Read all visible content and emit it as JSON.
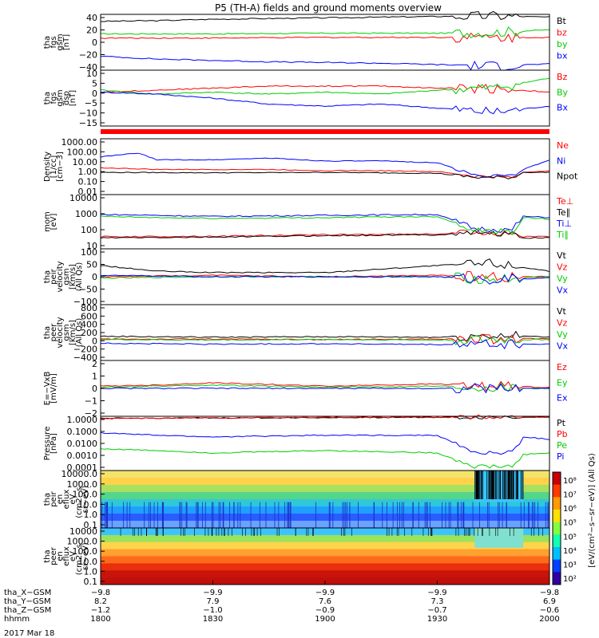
{
  "title": "P5 (TH-A) fields and ground moments overview",
  "date_label": "2017 Mar 18",
  "colors": {
    "black": "#000000",
    "red": "#ff0000",
    "green": "#00cc00",
    "blue": "#0000ff",
    "bar_red": "#ff0000"
  },
  "chart_data": [
    {
      "type": "line",
      "id": "p1",
      "ylabel": [
        "tha",
        "fgs",
        "gsm",
        "[nT]"
      ],
      "yticks": [
        "40",
        "20",
        "0",
        "−20",
        "−40"
      ],
      "ylim": [
        -40,
        40
      ],
      "legend": [
        "Bt",
        "bz",
        "by",
        "bx"
      ],
      "series": [
        {
          "name": "Bt",
          "color": "black",
          "x": [
            1800,
            1815,
            1830,
            1845,
            1900,
            1915,
            1930,
            1945,
            2000
          ],
          "y": [
            30,
            31,
            33,
            34,
            35,
            36,
            37,
            38,
            36
          ]
        },
        {
          "name": "bz",
          "color": "red",
          "x": [
            1800,
            1830,
            1900,
            1930,
            2000
          ],
          "y": [
            6,
            6,
            7,
            7,
            7
          ]
        },
        {
          "name": "by",
          "color": "green",
          "x": [
            1800,
            1830,
            1900,
            1930,
            1945,
            2000
          ],
          "y": [
            12,
            12,
            13,
            13,
            14,
            18
          ]
        },
        {
          "name": "bx",
          "color": "blue",
          "x": [
            1800,
            1815,
            1830,
            1845,
            1900,
            1915,
            1930,
            1945,
            2000
          ],
          "y": [
            -20,
            -24,
            -26,
            -28,
            -29,
            -30,
            -32,
            -34,
            -31
          ]
        }
      ]
    },
    {
      "type": "line",
      "id": "p2",
      "ylabel": [
        "tha",
        "fgs",
        "gsm",
        "dsp",
        "[nT]"
      ],
      "yticks": [
        "10",
        "5",
        "0",
        "−5",
        "−10",
        "−15"
      ],
      "ylim": [
        -18,
        10
      ],
      "legend": [
        "Bz",
        "By",
        "Bx"
      ],
      "series": [
        {
          "name": "Bz",
          "color": "red",
          "x": [
            1800,
            1815,
            1830,
            1845,
            1900,
            1915,
            1930,
            1945,
            2000
          ],
          "y": [
            -1,
            0,
            1,
            2,
            2,
            2,
            1,
            1,
            -1
          ]
        },
        {
          "name": "By",
          "color": "green",
          "x": [
            1800,
            1815,
            1830,
            1845,
            1900,
            1915,
            1930,
            1945,
            2000
          ],
          "y": [
            0,
            -2,
            -1,
            -2,
            -1,
            -2,
            0,
            1,
            6
          ]
        },
        {
          "name": "Bx",
          "color": "blue",
          "x": [
            1800,
            1815,
            1830,
            1845,
            1900,
            1915,
            1930,
            1945,
            2000
          ],
          "y": [
            -1,
            -2,
            -4,
            -7,
            -8,
            -7,
            -9,
            -11,
            -8
          ]
        }
      ]
    },
    {
      "type": "line",
      "id": "p3",
      "log": true,
      "ylabel": [
        "Density",
        "[1/cc]",
        "[cm−3]"
      ],
      "yticks": [
        "1000.00",
        "100.00",
        "10.00",
        "1.00",
        "0.10",
        "0.01"
      ],
      "ylim": [
        0.005,
        3000
      ],
      "legend": [
        "Ne",
        "Ni",
        "Npot"
      ],
      "series": [
        {
          "name": "Ne",
          "color": "red",
          "x": [
            1800,
            1815,
            1830,
            1845,
            1900,
            1915,
            1930,
            1940,
            1950,
            1953,
            2000
          ],
          "y": [
            3,
            2,
            2,
            2,
            1.5,
            1.5,
            1.2,
            0.4,
            0.3,
            1.0,
            1.5
          ]
        },
        {
          "name": "Ni",
          "color": "blue",
          "x": [
            1800,
            1810,
            1815,
            1830,
            1845,
            1900,
            1915,
            1930,
            1940,
            1950,
            1953,
            2000
          ],
          "y": [
            40,
            100,
            20,
            20,
            30,
            15,
            15,
            10,
            0.5,
            0.4,
            2,
            20
          ]
        },
        {
          "name": "Npot",
          "color": "black",
          "x": [
            1800,
            1830,
            1900,
            1930,
            1940,
            1950,
            1953,
            2000
          ],
          "y": [
            1.0,
            0.9,
            1.0,
            0.8,
            0.3,
            0.3,
            1.0,
            1.0
          ]
        }
      ]
    },
    {
      "type": "line",
      "id": "p4",
      "log": true,
      "ylabel": [
        "mom",
        "[eV]"
      ],
      "yticks": [
        "10000",
        "1000",
        "100",
        "10"
      ],
      "ylim": [
        5,
        15000
      ],
      "legend": [
        "Te⊥",
        "Te∥",
        "Ti⊥",
        "Ti∥"
      ],
      "series": [
        {
          "name": "Te⊥",
          "color": "red",
          "x": [
            1800,
            1830,
            1900,
            1930,
            1940,
            1950,
            1953,
            2000
          ],
          "y": [
            30,
            32,
            40,
            45,
            60,
            50,
            30,
            30
          ]
        },
        {
          "name": "Te∥",
          "color": "black",
          "x": [
            1800,
            1830,
            1900,
            1930,
            1940,
            1950,
            1953,
            2000
          ],
          "y": [
            25,
            28,
            35,
            40,
            55,
            45,
            25,
            25
          ]
        },
        {
          "name": "Ti⊥",
          "color": "blue",
          "x": [
            1800,
            1815,
            1830,
            1900,
            1930,
            1940,
            1950,
            1953,
            2000
          ],
          "y": [
            800,
            700,
            600,
            700,
            800,
            100,
            80,
            600,
            500
          ]
        },
        {
          "name": "Ti∥",
          "color": "green",
          "x": [
            1800,
            1815,
            1830,
            1900,
            1930,
            1940,
            1950,
            1953,
            2000
          ],
          "y": [
            600,
            500,
            450,
            500,
            600,
            80,
            60,
            500,
            400
          ]
        }
      ]
    },
    {
      "type": "line",
      "id": "p5",
      "ylabel": [
        "tha",
        "peir",
        "velocity",
        "gsm",
        "[km/s]",
        "(All Qs)"
      ],
      "yticks": [
        "100",
        "50",
        "0",
        "−50",
        "−100"
      ],
      "ylim": [
        -100,
        100
      ],
      "legend": [
        "Vt",
        "Vz",
        "Vy",
        "Vx"
      ],
      "series": [
        {
          "name": "Vt",
          "color": "black",
          "x": [
            1800,
            1815,
            1830,
            1900,
            1930,
            1945,
            2000
          ],
          "y": [
            40,
            20,
            15,
            15,
            40,
            50,
            20
          ]
        },
        {
          "name": "Vz",
          "color": "red",
          "x": [
            1800,
            1830,
            1900,
            1930,
            1945,
            2000
          ],
          "y": [
            0,
            5,
            0,
            5,
            0,
            0
          ]
        },
        {
          "name": "Vy",
          "color": "green",
          "x": [
            1800,
            1830,
            1900,
            1930,
            1945,
            2000
          ],
          "y": [
            -5,
            0,
            0,
            0,
            -10,
            0
          ]
        },
        {
          "name": "Vx",
          "color": "blue",
          "x": [
            1800,
            1830,
            1900,
            1930,
            1945,
            2000
          ],
          "y": [
            5,
            0,
            0,
            0,
            -10,
            -5
          ]
        }
      ]
    },
    {
      "type": "line",
      "id": "p6",
      "ylabel": [
        "tha",
        "peer",
        "velocity",
        "gsm",
        "[km/s]",
        "(All Qs)"
      ],
      "yticks": [
        "800",
        "600",
        "400",
        "200",
        "0",
        "−200",
        "−400"
      ],
      "ylim": [
        -400,
        800
      ],
      "legend": [
        "Vt",
        "Vz",
        "Vy",
        "Vx"
      ],
      "series": [
        {
          "name": "Vt",
          "color": "black",
          "x": [
            1800,
            1830,
            1900,
            1930,
            1945,
            2000
          ],
          "y": [
            120,
            100,
            110,
            100,
            150,
            100
          ]
        },
        {
          "name": "Vz",
          "color": "red",
          "x": [
            1800,
            1830,
            1900,
            1930,
            2000
          ],
          "y": [
            60,
            60,
            50,
            60,
            70
          ]
        },
        {
          "name": "Vy",
          "color": "green",
          "x": [
            1800,
            1830,
            1900,
            1930,
            2000
          ],
          "y": [
            50,
            40,
            50,
            40,
            50
          ]
        },
        {
          "name": "Vx",
          "color": "blue",
          "x": [
            1800,
            1830,
            1900,
            1930,
            2000
          ],
          "y": [
            -30,
            -50,
            -40,
            -60,
            -50
          ]
        }
      ]
    },
    {
      "type": "line",
      "id": "p7",
      "ylabel": [
        "E=−VxB",
        "[mV/m]"
      ],
      "yticks": [
        "2",
        "1",
        "0",
        "−1",
        "−2"
      ],
      "ylim": [
        -2.5,
        2.5
      ],
      "legend": [
        "Ez",
        "Ey",
        "Ex"
      ],
      "series": [
        {
          "name": "Ez",
          "color": "red",
          "x": [
            1800,
            1815,
            1830,
            1900,
            1930,
            1945,
            2000
          ],
          "y": [
            0.2,
            0.3,
            0.5,
            0.2,
            0.4,
            0.2,
            0.1
          ]
        },
        {
          "name": "Ey",
          "color": "green",
          "x": [
            1800,
            1815,
            1830,
            1900,
            1930,
            1945,
            2000
          ],
          "y": [
            0.1,
            0.2,
            0.3,
            0.1,
            0.2,
            0.1,
            0.0
          ]
        },
        {
          "name": "Ex",
          "color": "blue",
          "x": [
            1800,
            1830,
            1900,
            1930,
            2000
          ],
          "y": [
            0,
            0,
            0,
            0,
            0
          ]
        }
      ]
    },
    {
      "type": "line",
      "id": "p8",
      "log": true,
      "ylabel": [
        "Pressure",
        "[nPa]"
      ],
      "yticks": [
        "1.0000",
        "0.1000",
        "0.0100",
        "0.0010",
        "0.0001"
      ],
      "ylim": [
        0.0001,
        1.0
      ],
      "legend": [
        "Pt",
        "Pb",
        "Pe",
        "Pi"
      ],
      "series": [
        {
          "name": "Pt",
          "color": "black",
          "x": [
            1800,
            1830,
            1900,
            1930,
            2000
          ],
          "y": [
            0.7,
            0.75,
            0.8,
            0.85,
            0.9
          ]
        },
        {
          "name": "Pb",
          "color": "red",
          "x": [
            1800,
            1830,
            1900,
            1930,
            2000
          ],
          "y": [
            0.7,
            0.75,
            0.8,
            0.85,
            0.9
          ]
        },
        {
          "name": "Pe",
          "color": "green",
          "x": [
            1800,
            1815,
            1830,
            1900,
            1930,
            1940,
            1950,
            1953,
            2000
          ],
          "y": [
            0.004,
            0.003,
            0.002,
            0.003,
            0.002,
            0.0002,
            0.0002,
            0.0015,
            0.002
          ]
        },
        {
          "name": "Pi",
          "color": "blue",
          "x": [
            1800,
            1815,
            1830,
            1900,
            1930,
            1940,
            1950,
            1953,
            2000
          ],
          "y": [
            0.06,
            0.04,
            0.03,
            0.04,
            0.04,
            0.002,
            0.002,
            0.03,
            0.02
          ]
        }
      ]
    },
    {
      "type": "heatmap",
      "id": "p9",
      "ylabel": [
        "tha",
        "peir",
        "en",
        "eflux",
        "eV",
        "(cm2−s−",
        "sr−eV)"
      ],
      "yticks": [
        "10000.0",
        "1000.0",
        "100.0",
        "10.0",
        "1.0",
        "0.1"
      ],
      "ylim": [
        0.1,
        10000
      ]
    },
    {
      "type": "heatmap",
      "id": "p10",
      "ylabel": [
        "tha",
        "peer",
        "en",
        "eflux",
        "eV",
        "(cm2−s−",
        "sr−eV)"
      ],
      "yticks": [
        "10000",
        "1000.0",
        "100.0",
        "10.0",
        "1.0",
        "0.1"
      ],
      "ylim": [
        0.1,
        10000
      ]
    }
  ],
  "colorbar": {
    "ticks": [
      "10⁸",
      "10⁷",
      "10⁶",
      "10⁵",
      "10⁵",
      "10⁴",
      "10³",
      "10²"
    ],
    "label": "[eV/(cm²−s−sr−eV)] (All Qs)"
  },
  "x_axis": {
    "ticks": [
      "1800",
      "1830",
      "1900",
      "1930",
      "2000"
    ],
    "rows": [
      {
        "label": "tha_X−GSM",
        "values": [
          "−9.8",
          "−9.9",
          "−9.9",
          "−9.9",
          "−9.8"
        ]
      },
      {
        "label": "tha_Y−GSM",
        "values": [
          "8.2",
          "7.9",
          "7.6",
          "7.3",
          "6.9"
        ]
      },
      {
        "label": "tha_Z−GSM",
        "values": [
          "−1.2",
          "−1.0",
          "−0.9",
          "−0.7",
          "−0.6"
        ]
      },
      {
        "label": "hhmm",
        "values": [
          "1800",
          "1830",
          "1900",
          "1930",
          "2000"
        ]
      }
    ]
  }
}
